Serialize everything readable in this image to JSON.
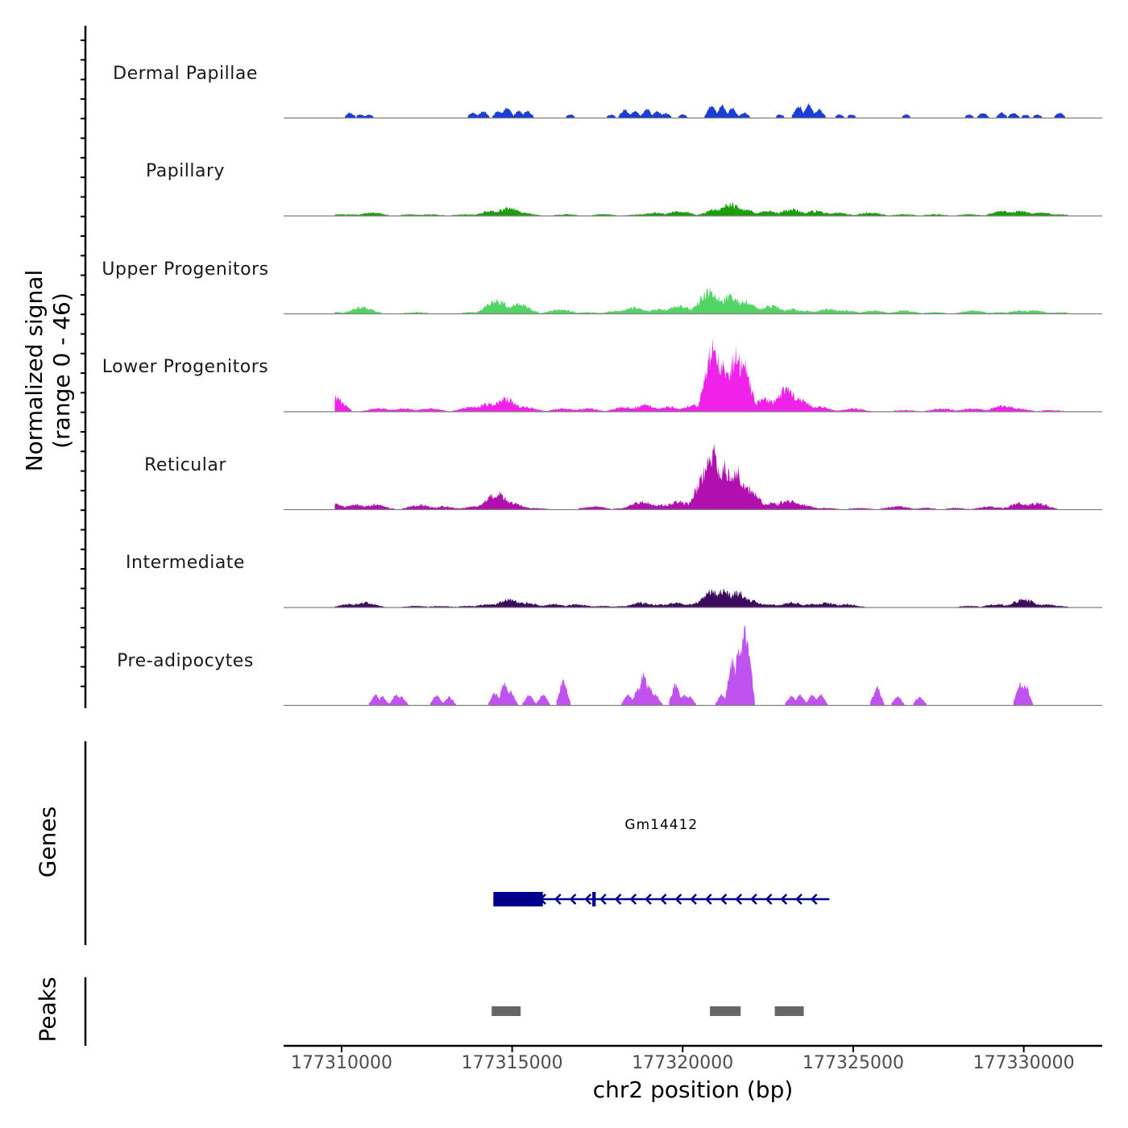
{
  "y_axis_title_line1": "Normalized signal",
  "y_axis_title_line2": "(range 0 - 46)",
  "genes_label": "Genes",
  "peaks_label": "Peaks",
  "x_axis_title": "chr2 position (bp)",
  "gene_name": "Gm14412",
  "chart_data": {
    "type": "area",
    "title": "",
    "xlabel": "chr2 position (bp)",
    "ylabel": "Normalized signal (range 0 - 46)",
    "xlim": [
      177308300,
      177332300
    ],
    "ylim": [
      0,
      46
    ],
    "x_ticks": [
      "177310000",
      "177315000",
      "177320000",
      "177325000",
      "177330000"
    ],
    "x_tick_values": [
      177310000,
      177315000,
      177320000,
      177325000,
      177330000
    ],
    "tracks": [
      {
        "name": "Dermal Papillae",
        "color": "#1b3ed6",
        "peaks": [
          [
            177310250,
            3
          ],
          [
            177310550,
            2
          ],
          [
            177310800,
            2
          ],
          [
            177313850,
            3
          ],
          [
            177314150,
            4
          ],
          [
            177314600,
            4
          ],
          [
            177314850,
            6
          ],
          [
            177315200,
            4
          ],
          [
            177315450,
            4
          ],
          [
            177316700,
            2
          ],
          [
            177317900,
            2
          ],
          [
            177318300,
            5
          ],
          [
            177318600,
            4
          ],
          [
            177318950,
            5
          ],
          [
            177319250,
            4
          ],
          [
            177319500,
            3
          ],
          [
            177320000,
            2
          ],
          [
            177320850,
            8
          ],
          [
            177321150,
            7
          ],
          [
            177321450,
            6
          ],
          [
            177321800,
            3
          ],
          [
            177322850,
            2
          ],
          [
            177323400,
            7
          ],
          [
            177323700,
            8
          ],
          [
            177324000,
            5
          ],
          [
            177324600,
            2
          ],
          [
            177324950,
            2
          ],
          [
            177326550,
            2
          ],
          [
            177328400,
            2
          ],
          [
            177328800,
            3
          ],
          [
            177329350,
            3
          ],
          [
            177329700,
            3
          ],
          [
            177330050,
            2
          ],
          [
            177330400,
            2
          ],
          [
            177331050,
            3
          ]
        ]
      },
      {
        "name": "Papillary",
        "color": "#1a9e0a",
        "peaks": [
          [
            177309300,
            1
          ],
          [
            177309900,
            1
          ],
          [
            177310300,
            1
          ],
          [
            177310900,
            2
          ],
          [
            177312000,
            1
          ],
          [
            177312600,
            1
          ],
          [
            177313600,
            1
          ],
          [
            177314400,
            3
          ],
          [
            177314900,
            5
          ],
          [
            177315300,
            2
          ],
          [
            177316600,
            1
          ],
          [
            177317700,
            1
          ],
          [
            177318700,
            1
          ],
          [
            177319200,
            2
          ],
          [
            177319900,
            3
          ],
          [
            177321000,
            4
          ],
          [
            177321400,
            7
          ],
          [
            177321800,
            4
          ],
          [
            177322500,
            3
          ],
          [
            177323200,
            4
          ],
          [
            177323900,
            3
          ],
          [
            177324500,
            2
          ],
          [
            177325500,
            2
          ],
          [
            177326500,
            1
          ],
          [
            177327400,
            1
          ],
          [
            177328400,
            1
          ],
          [
            177329400,
            3
          ],
          [
            177329900,
            3
          ],
          [
            177330500,
            2
          ],
          [
            177331000,
            1
          ]
        ]
      },
      {
        "name": "Upper Progenitors",
        "color": "#54d464",
        "peaks": [
          [
            177309600,
            2
          ],
          [
            177310600,
            4
          ],
          [
            177312200,
            1
          ],
          [
            177313800,
            1
          ],
          [
            177314550,
            8
          ],
          [
            177315200,
            6
          ],
          [
            177316400,
            3
          ],
          [
            177317200,
            1
          ],
          [
            177318100,
            2
          ],
          [
            177318600,
            4
          ],
          [
            177319300,
            3
          ],
          [
            177319900,
            5
          ],
          [
            177320800,
            14
          ],
          [
            177321400,
            11
          ],
          [
            177321800,
            8
          ],
          [
            177322600,
            5
          ],
          [
            177323200,
            3
          ],
          [
            177323600,
            2
          ],
          [
            177324300,
            3
          ],
          [
            177324800,
            2
          ],
          [
            177325600,
            2
          ],
          [
            177326500,
            2
          ],
          [
            177327400,
            1
          ],
          [
            177328500,
            2
          ],
          [
            177329300,
            1
          ],
          [
            177329900,
            2
          ],
          [
            177330300,
            2
          ],
          [
            177331100,
            1
          ]
        ]
      },
      {
        "name": "Lower Progenitors",
        "color": "#f021e8",
        "peaks": [
          [
            177309700,
            10
          ],
          [
            177311100,
            2
          ],
          [
            177311800,
            2
          ],
          [
            177312600,
            2
          ],
          [
            177313800,
            3
          ],
          [
            177314300,
            5
          ],
          [
            177314800,
            8
          ],
          [
            177315400,
            3
          ],
          [
            177316500,
            2
          ],
          [
            177317200,
            2
          ],
          [
            177318300,
            3
          ],
          [
            177318900,
            4
          ],
          [
            177319600,
            3
          ],
          [
            177320300,
            4
          ],
          [
            177320900,
            40
          ],
          [
            177321200,
            27
          ],
          [
            177321550,
            34
          ],
          [
            177321750,
            30
          ],
          [
            177322400,
            8
          ],
          [
            177323050,
            14
          ],
          [
            177323400,
            8
          ],
          [
            177324000,
            3
          ],
          [
            177325000,
            2
          ],
          [
            177326500,
            1
          ],
          [
            177327600,
            2
          ],
          [
            177328500,
            2
          ],
          [
            177329400,
            4
          ],
          [
            177329800,
            2
          ],
          [
            177330800,
            1
          ]
        ]
      },
      {
        "name": "Reticular",
        "color": "#b10fae",
        "peaks": [
          [
            177309700,
            4
          ],
          [
            177310400,
            3
          ],
          [
            177311000,
            3
          ],
          [
            177312300,
            3
          ],
          [
            177313000,
            2
          ],
          [
            177313900,
            2
          ],
          [
            177314550,
            10
          ],
          [
            177315000,
            4
          ],
          [
            177315700,
            1
          ],
          [
            177317400,
            2
          ],
          [
            177318300,
            1
          ],
          [
            177318800,
            5
          ],
          [
            177319400,
            3
          ],
          [
            177319900,
            5
          ],
          [
            177320600,
            20
          ],
          [
            177320850,
            38
          ],
          [
            177321200,
            26
          ],
          [
            177321550,
            25
          ],
          [
            177321900,
            13
          ],
          [
            177322600,
            4
          ],
          [
            177323100,
            6
          ],
          [
            177323500,
            3
          ],
          [
            177324200,
            1
          ],
          [
            177325200,
            1
          ],
          [
            177326300,
            2
          ],
          [
            177327100,
            1
          ],
          [
            177328000,
            1
          ],
          [
            177329000,
            2
          ],
          [
            177329900,
            4
          ],
          [
            177330400,
            4
          ]
        ]
      },
      {
        "name": "Intermediate",
        "color": "#3c0a5e",
        "peaks": [
          [
            177310200,
            2
          ],
          [
            177310700,
            3
          ],
          [
            177312200,
            1
          ],
          [
            177312900,
            1
          ],
          [
            177313700,
            1
          ],
          [
            177314300,
            2
          ],
          [
            177314900,
            5
          ],
          [
            177315400,
            3
          ],
          [
            177316200,
            2
          ],
          [
            177316900,
            2
          ],
          [
            177317600,
            1
          ],
          [
            177318300,
            1
          ],
          [
            177318800,
            3
          ],
          [
            177319300,
            2
          ],
          [
            177319800,
            3
          ],
          [
            177320500,
            3
          ],
          [
            177320900,
            10
          ],
          [
            177321200,
            10
          ],
          [
            177321600,
            9
          ],
          [
            177321900,
            5
          ],
          [
            177322500,
            2
          ],
          [
            177323200,
            3
          ],
          [
            177323800,
            2
          ],
          [
            177324200,
            3
          ],
          [
            177324800,
            2
          ],
          [
            177328400,
            1
          ],
          [
            177329200,
            2
          ],
          [
            177330000,
            5
          ],
          [
            177330600,
            2
          ],
          [
            177331000,
            1
          ]
        ]
      },
      {
        "name": "Pre-adipocytes",
        "color": "#c052f0",
        "peaks": [
          [
            177311000,
            6
          ],
          [
            177311200,
            5
          ],
          [
            177311600,
            6
          ],
          [
            177311750,
            5
          ],
          [
            177312800,
            6
          ],
          [
            177313150,
            5
          ],
          [
            177314500,
            7
          ],
          [
            177314780,
            12
          ],
          [
            177314950,
            8
          ],
          [
            177315500,
            6
          ],
          [
            177315900,
            6
          ],
          [
            177316500,
            14
          ],
          [
            177318400,
            6
          ],
          [
            177318700,
            10
          ],
          [
            177318850,
            18
          ],
          [
            177319000,
            12
          ],
          [
            177319200,
            6
          ],
          [
            177319800,
            12
          ],
          [
            177320050,
            6
          ],
          [
            177320200,
            5
          ],
          [
            177321150,
            6
          ],
          [
            177321450,
            26
          ],
          [
            177321650,
            35
          ],
          [
            177321800,
            44
          ],
          [
            177321900,
            34
          ],
          [
            177323200,
            6
          ],
          [
            177323450,
            6
          ],
          [
            177323800,
            6
          ],
          [
            177324050,
            6
          ],
          [
            177325700,
            10
          ],
          [
            177326300,
            5
          ],
          [
            177326950,
            5
          ],
          [
            177329900,
            12
          ],
          [
            177330050,
            12
          ]
        ]
      }
    ],
    "genes": [
      {
        "name": "Gm14412",
        "start": 177314450,
        "end": 177324300,
        "strand": "-",
        "exons": [
          [
            177314450,
            177315900
          ],
          [
            177317350,
            177317450
          ]
        ]
      }
    ],
    "peak_regions": [
      [
        177314400,
        177315250
      ],
      [
        177320800,
        177321700
      ],
      [
        177322700,
        177323550
      ]
    ]
  }
}
